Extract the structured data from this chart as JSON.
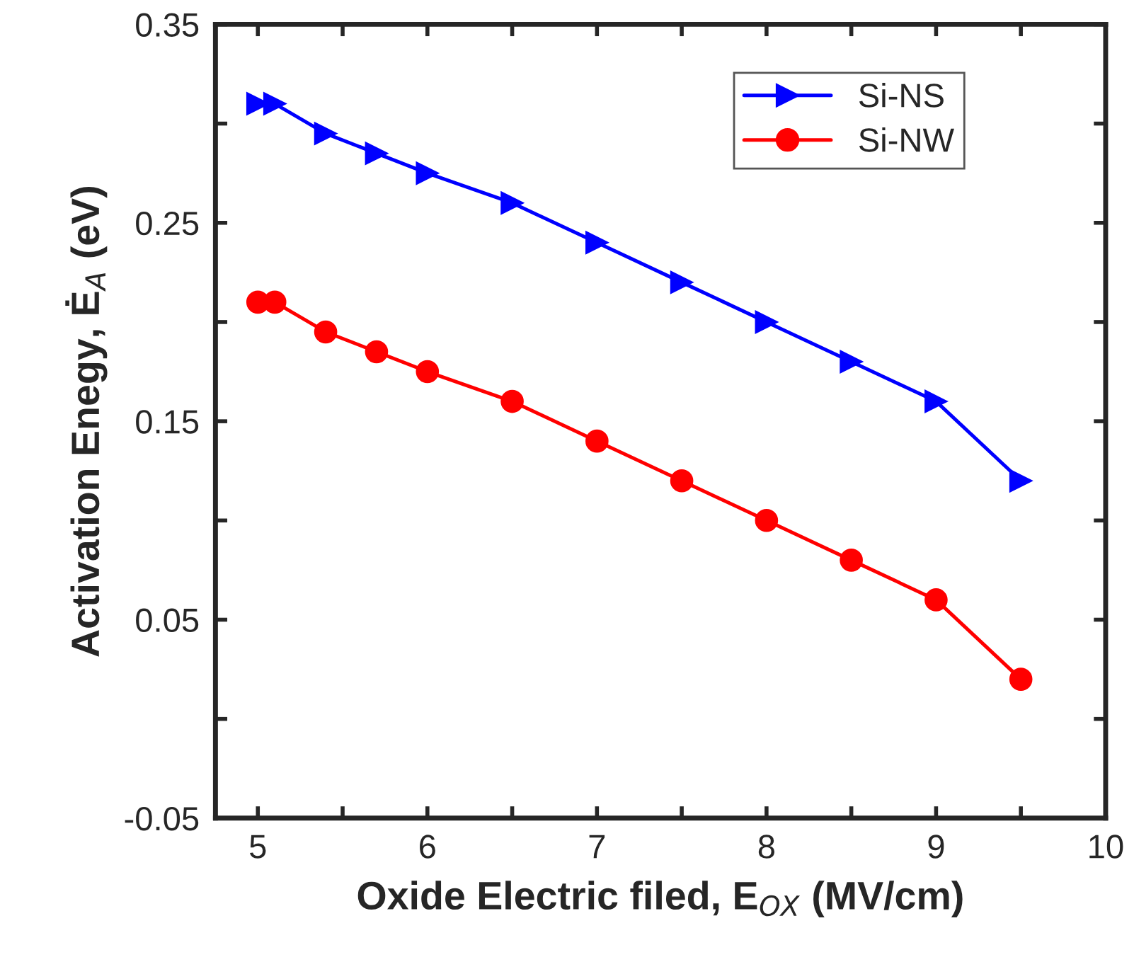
{
  "chart_data": {
    "type": "line",
    "xlabel": "Oxide Electric filed, E$_{OX}$ (MV/cm)",
    "ylabel": "Activation Enegy, Ė$_{A}$ (eV)",
    "x": [
      5,
      5.1,
      5.4,
      5.7,
      6,
      6.5,
      7,
      7.5,
      8,
      8.5,
      9,
      9.5
    ],
    "series": [
      {
        "name": "Si-NS",
        "color": "#0000ff",
        "marker": "triangle",
        "values": [
          0.31,
          0.31,
          0.295,
          0.285,
          0.275,
          0.26,
          0.24,
          0.22,
          0.2,
          0.18,
          0.16,
          0.12
        ]
      },
      {
        "name": "Si-NW",
        "color": "#ff0000",
        "marker": "circle",
        "values": [
          0.21,
          0.21,
          0.195,
          0.185,
          0.175,
          0.16,
          0.14,
          0.12,
          0.1,
          0.08,
          0.06,
          0.02
        ]
      }
    ],
    "xlim": [
      4.75,
      10
    ],
    "ylim": [
      -0.05,
      0.35
    ],
    "xticks": [
      5,
      {
        "value": 5.5,
        "label": null
      },
      6,
      {
        "value": 6.5,
        "label": null
      },
      7,
      {
        "value": 7.5,
        "label": null
      },
      8,
      {
        "value": 8.5,
        "label": null
      },
      9,
      {
        "value": 9.5,
        "label": null
      },
      10
    ],
    "yticks": [
      -0.05,
      {
        "value": 0.0,
        "label": null
      },
      0.05,
      {
        "value": 0.1,
        "label": null
      },
      0.15,
      {
        "value": 0.2,
        "label": null
      },
      0.25,
      {
        "value": 0.3,
        "label": null
      },
      0.35
    ],
    "legend": "top right",
    "grid": false,
    "line_style": "solid"
  }
}
